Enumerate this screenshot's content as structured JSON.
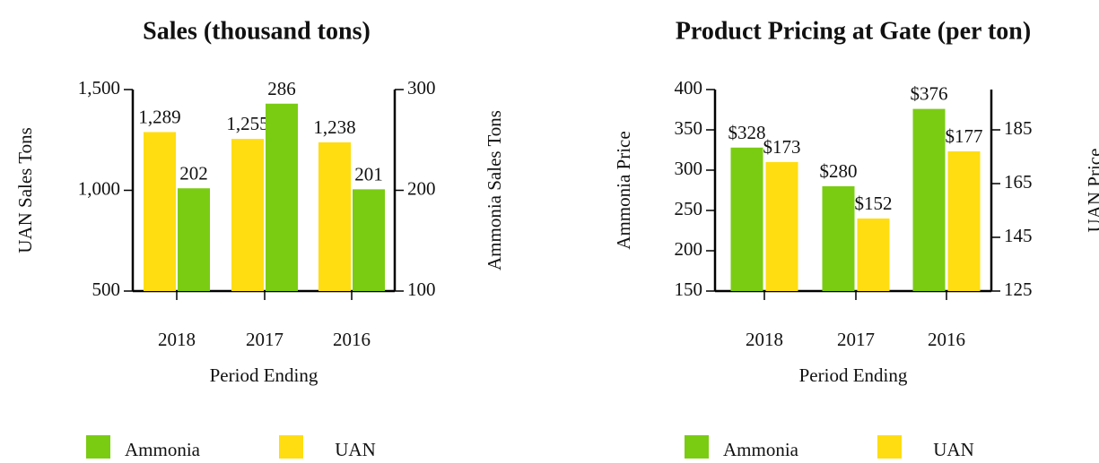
{
  "colors": {
    "ammonia": "#7acc12",
    "uan": "#ffdd11"
  },
  "legend": {
    "ammonia": "Ammonia",
    "uan": "UAN"
  },
  "chart_data": [
    {
      "type": "bar",
      "title": "Sales (thousand tons)",
      "xlabel": "Period Ending",
      "categories": [
        "2018",
        "2017",
        "2016"
      ],
      "y_left": {
        "label": "UAN Sales Tons",
        "ylim": [
          500,
          1500
        ],
        "ticks": [
          500,
          1000,
          1500
        ],
        "tick_labels": [
          "500",
          "1,000",
          "1,500"
        ]
      },
      "y_right": {
        "label": "Ammonia Sales Tons",
        "ylim": [
          100,
          300
        ],
        "ticks": [
          100,
          200,
          300
        ],
        "tick_labels": [
          "100",
          "200",
          "300"
        ]
      },
      "series": [
        {
          "name": "UAN",
          "color_key": "uan",
          "axis": "left",
          "values": [
            1289,
            1255,
            1238
          ],
          "labels": [
            "1,289",
            "1,255",
            "1,238"
          ]
        },
        {
          "name": "Ammonia",
          "color_key": "ammonia",
          "axis": "right",
          "values": [
            202,
            286,
            201
          ],
          "labels": [
            "202",
            "286",
            "201"
          ]
        }
      ],
      "legend_position": "bottom",
      "grid": false
    },
    {
      "type": "bar",
      "title": "Product Pricing at Gate (per ton)",
      "xlabel": "Period Ending",
      "categories": [
        "2018",
        "2017",
        "2016"
      ],
      "y_left": {
        "label": "Ammonia Price",
        "ylim": [
          150,
          400
        ],
        "ticks": [
          150,
          200,
          250,
          300,
          350,
          400
        ],
        "tick_labels": [
          "150",
          "200",
          "250",
          "300",
          "350",
          "400"
        ]
      },
      "y_right": {
        "label": "UAN Price",
        "ylim": [
          125,
          200
        ],
        "ticks": [
          125,
          145,
          165,
          185
        ],
        "tick_labels": [
          "125",
          "145",
          "165",
          "185"
        ]
      },
      "series": [
        {
          "name": "Ammonia",
          "color_key": "ammonia",
          "axis": "left",
          "values": [
            328,
            280,
            376
          ],
          "labels": [
            "$328",
            "$280",
            "$376"
          ]
        },
        {
          "name": "UAN",
          "color_key": "uan",
          "axis": "right",
          "values": [
            173,
            152,
            177
          ],
          "labels": [
            "$173",
            "$152",
            "$177"
          ]
        }
      ],
      "legend_position": "bottom",
      "grid": false
    }
  ]
}
